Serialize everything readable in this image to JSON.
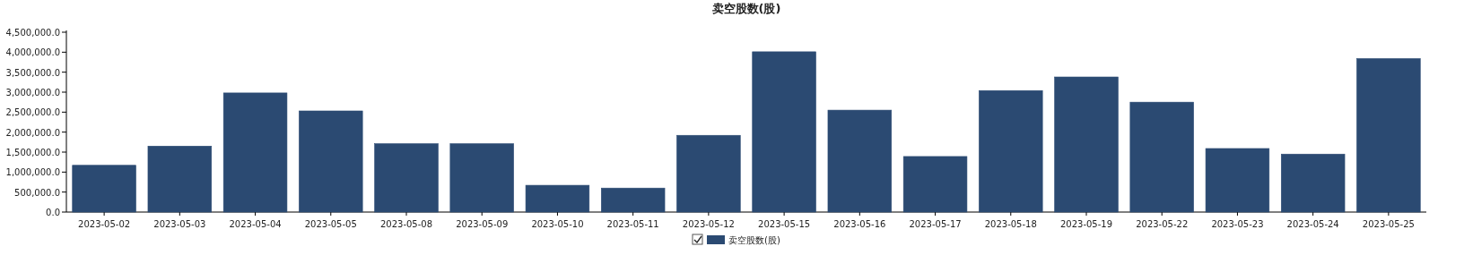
{
  "chart_data": {
    "type": "bar",
    "title": "卖空股数(股)",
    "categories": [
      "2023-05-02",
      "2023-05-03",
      "2023-05-04",
      "2023-05-05",
      "2023-05-08",
      "2023-05-09",
      "2023-05-10",
      "2023-05-11",
      "2023-05-12",
      "2023-05-15",
      "2023-05-16",
      "2023-05-17",
      "2023-05-18",
      "2023-05-19",
      "2023-05-22",
      "2023-05-23",
      "2023-05-24",
      "2023-05-25"
    ],
    "series": [
      {
        "name": "卖空股数(股)",
        "color": "#2b4a72",
        "values": [
          1170000,
          1650000,
          2980000,
          2530000,
          1710000,
          1710000,
          670000,
          600000,
          1920000,
          4010000,
          2550000,
          1390000,
          3040000,
          3380000,
          2750000,
          1590000,
          1450000,
          3840000
        ]
      }
    ],
    "ylim": [
      0,
      4500000
    ],
    "yticks": [
      {
        "value": 0,
        "label": "0.0"
      },
      {
        "value": 500000,
        "label": "500,000.0"
      },
      {
        "value": 1000000,
        "label": "1,000,000.0"
      },
      {
        "value": 1500000,
        "label": "1,500,000.0"
      },
      {
        "value": 2000000,
        "label": "2,000,000.0"
      },
      {
        "value": 2500000,
        "label": "2,500,000.0"
      },
      {
        "value": 3000000,
        "label": "3,000,000.0"
      },
      {
        "value": 3500000,
        "label": "3,500,000.0"
      },
      {
        "value": 4000000,
        "label": "4,000,000.0"
      },
      {
        "value": 4500000,
        "label": "4,500,000.0"
      }
    ],
    "grid": false,
    "legend": "bottom"
  }
}
